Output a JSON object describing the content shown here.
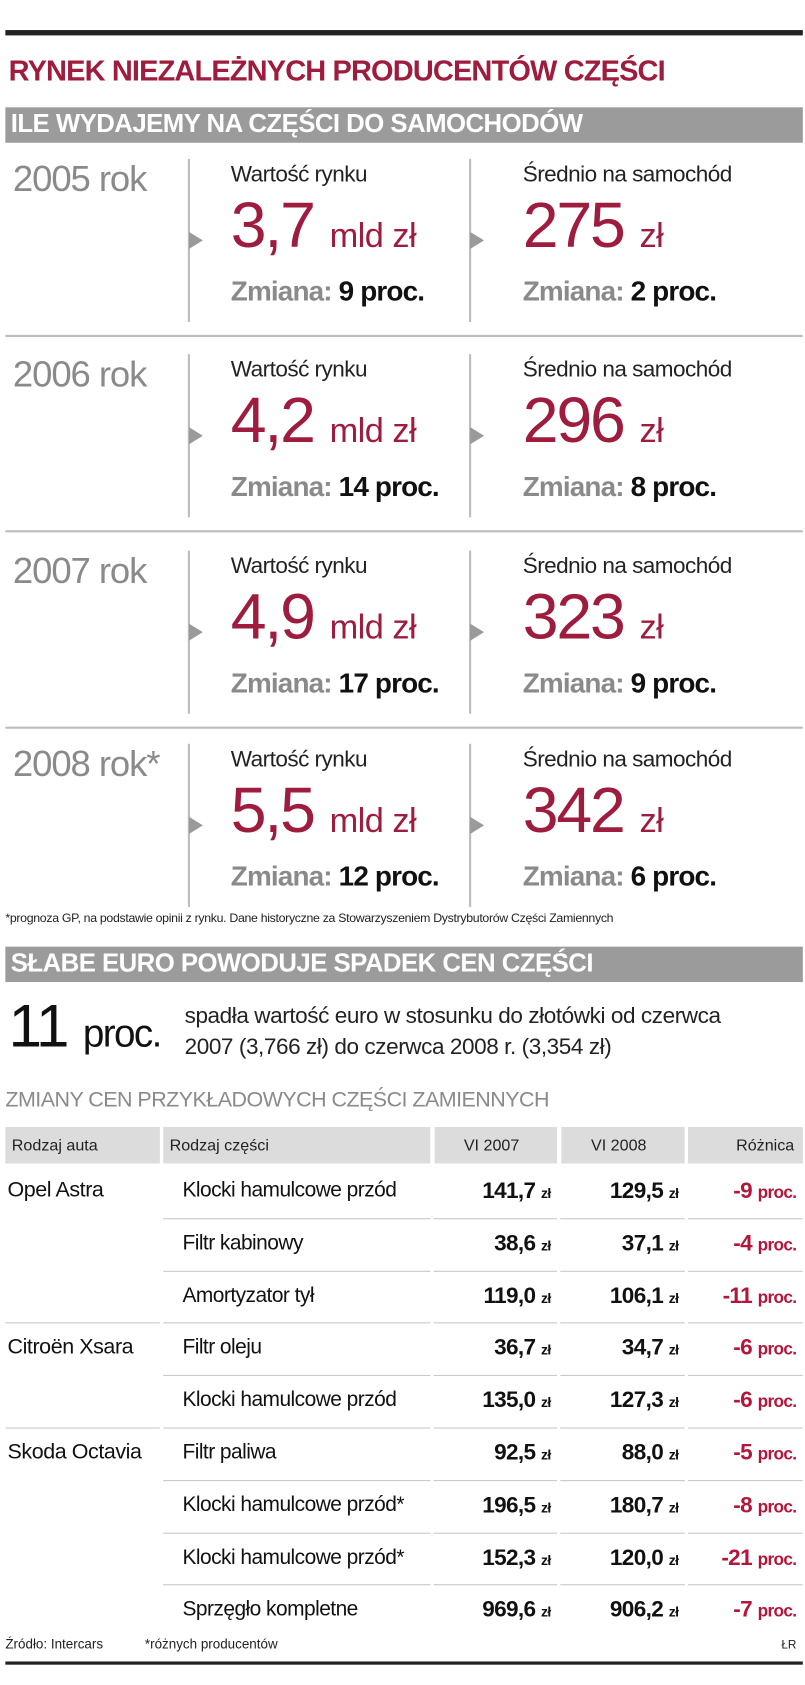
{
  "header": {
    "title": "RYNEK NIEZALEŻNYCH PRODUCENTÓW CZĘŚCI"
  },
  "spending": {
    "title": "ILE WYDAJEMY NA CZĘŚCI DO SAMOCHODÓW",
    "years": [
      {
        "year": "2005 rok",
        "market": {
          "label": "Wartość rynku",
          "value": "3,7",
          "unit": "mld zł",
          "change_label": "Zmiana:",
          "change": "9 proc."
        },
        "per_car": {
          "label": "Średnio na samochód",
          "value": "275",
          "unit": "zł",
          "change_label": "Zmiana:",
          "change": "2 proc."
        }
      },
      {
        "year": "2006 rok",
        "market": {
          "label": "Wartość rynku",
          "value": "4,2",
          "unit": "mld zł",
          "change_label": "Zmiana:",
          "change": "14 proc."
        },
        "per_car": {
          "label": "Średnio na samochód",
          "value": "296",
          "unit": "zł",
          "change_label": "Zmiana:",
          "change": "8 proc."
        }
      },
      {
        "year": "2007 rok",
        "market": {
          "label": "Wartość rynku",
          "value": "4,9",
          "unit": "mld zł",
          "change_label": "Zmiana:",
          "change": "17 proc."
        },
        "per_car": {
          "label": "Średnio na samochód",
          "value": "323",
          "unit": "zł",
          "change_label": "Zmiana:",
          "change": "9 proc."
        }
      },
      {
        "year": "2008 rok*",
        "market": {
          "label": "Wartość rynku",
          "value": "5,5",
          "unit": "mld zł",
          "change_label": "Zmiana:",
          "change": "12 proc."
        },
        "per_car": {
          "label": "Średnio na samochód",
          "value": "342",
          "unit": "zł",
          "change_label": "Zmiana:",
          "change": "6 proc."
        }
      }
    ],
    "footnote": "*prognoza GP, na podstawie opinii z rynku. Dane historyczne za Stowarzyszeniem Dystrybutorów Części Zamiennych"
  },
  "euro": {
    "title": "SŁABE EURO POWODUJE SPADEK CEN CZĘŚCI",
    "big_value": "11",
    "big_unit": "proc.",
    "text_lines": [
      "spadła wartość euro w stosunku do złotówki od czerwca",
      "2007 (3,766 zł) do czerwca 2008 r. (3,354 zł)"
    ]
  },
  "table": {
    "title": "ZMIANY CEN PRZYKŁADOWYCH CZĘŚCI ZAMIENNYCH",
    "headers": [
      "Rodzaj auta",
      "Rodzaj części",
      "VI 2007",
      "VI 2008",
      "Różnica"
    ],
    "rows": [
      {
        "car": "Opel Astra",
        "part": "Klocki hamulcowe przód",
        "v2007": {
          "value": "141,7",
          "unit": "zł"
        },
        "v2008": {
          "value": "129,5",
          "unit": "zł"
        },
        "diff": {
          "value": "-9",
          "unit": "proc."
        }
      },
      {
        "part": "Filtr kabinowy",
        "v2007": {
          "value": "38,6",
          "unit": "zł"
        },
        "v2008": {
          "value": "37,1",
          "unit": "zł"
        },
        "diff": {
          "value": "-4",
          "unit": "proc."
        }
      },
      {
        "part": "Amortyzator tył",
        "v2007": {
          "value": "119,0",
          "unit": "zł"
        },
        "v2008": {
          "value": "106,1",
          "unit": "zł"
        },
        "diff": {
          "value": "-11",
          "unit": "proc."
        }
      },
      {
        "car": "Citroën Xsara",
        "part": "Filtr oleju",
        "v2007": {
          "value": "36,7",
          "unit": "zł"
        },
        "v2008": {
          "value": "34,7",
          "unit": "zł"
        },
        "diff": {
          "value": "-6",
          "unit": "proc."
        }
      },
      {
        "part": "Klocki hamulcowe przód",
        "v2007": {
          "value": "135,0",
          "unit": "zł"
        },
        "v2008": {
          "value": "127,3",
          "unit": "zł"
        },
        "diff": {
          "value": "-6",
          "unit": "proc."
        }
      },
      {
        "car": "Skoda Octavia",
        "part": "Filtr paliwa",
        "v2007": {
          "value": "92,5",
          "unit": "zł"
        },
        "v2008": {
          "value": "88,0",
          "unit": "zł"
        },
        "diff": {
          "value": "-5",
          "unit": "proc."
        }
      },
      {
        "part": "Klocki hamulcowe przód*",
        "v2007": {
          "value": "196,5",
          "unit": "zł"
        },
        "v2008": {
          "value": "180,7",
          "unit": "zł"
        },
        "diff": {
          "value": "-8",
          "unit": "proc."
        }
      },
      {
        "part": "Klocki hamulcowe przód*",
        "v2007": {
          "value": "152,3",
          "unit": "zł"
        },
        "v2008": {
          "value": "120,0",
          "unit": "zł"
        },
        "diff": {
          "value": "-21",
          "unit": "proc."
        }
      },
      {
        "part": "Sprzęgło kompletne",
        "v2007": {
          "value": "969,6",
          "unit": "zł"
        },
        "v2008": {
          "value": "906,2",
          "unit": "zł"
        },
        "diff": {
          "value": "-7",
          "unit": "proc."
        }
      }
    ]
  },
  "footer": {
    "source": "Źródło: Intercars",
    "note": "*różnych producentów",
    "author": "ŁR"
  }
}
